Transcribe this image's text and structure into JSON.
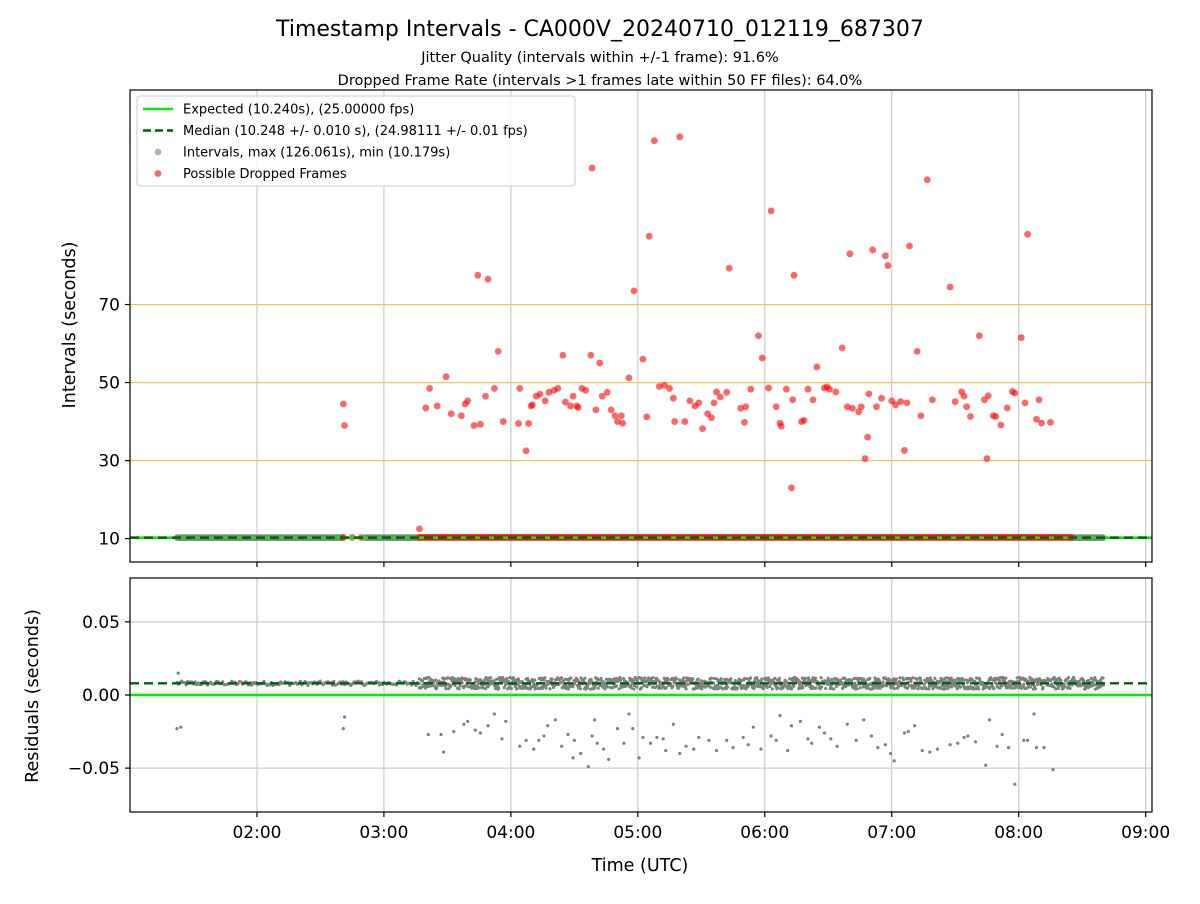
{
  "title": "Timestamp Intervals - CA000V_20240710_012119_687307",
  "subtitle_1": "Jitter Quality (intervals within +/-1 frame): 91.6%",
  "subtitle_2": "Dropped Frame Rate (intervals >1 frames late within 50 FF files): 64.0%",
  "xlabel": "Time (UTC)",
  "colors": {
    "expected": "#00ee00",
    "median": "#006400",
    "intervals": "#808080",
    "dropped": "#ff0000",
    "hline": "#f5c542"
  },
  "chart_data": [
    {
      "type": "scatter",
      "panel": "intervals",
      "ylabel": "Intervals (seconds)",
      "x_unit": "hours UTC",
      "xlim": [
        1.0,
        9.05
      ],
      "ylim": [
        4,
        125
      ],
      "yticks": [
        10,
        30,
        50,
        70
      ],
      "xticks": [
        2,
        3,
        4,
        5,
        6,
        7,
        8,
        9
      ],
      "xtick_labels": [
        "02:00",
        "03:00",
        "04:00",
        "05:00",
        "06:00",
        "07:00",
        "08:00",
        "09:00"
      ],
      "grid": true,
      "legend_position": "top-left",
      "legend": [
        {
          "label": "Expected (10.240s), (25.00000 fps)",
          "style": "solid-line",
          "color": "#00ee00"
        },
        {
          "label": "Median (10.248 +/- 0.010 s), (24.98111 +/- 0.01 fps)",
          "style": "dashed-line",
          "color": "#006400"
        },
        {
          "label": "Intervals, max (126.061s), min (10.179s)",
          "style": "marker",
          "color": "#808080"
        },
        {
          "label": "Possible Dropped Frames",
          "style": "marker",
          "color": "#ff0000"
        }
      ],
      "expected_value": 10.24,
      "median_value": 10.248,
      "horizontal_lines": [
        30,
        50,
        70
      ],
      "normal_intervals": {
        "x_ranges": [
          [
            1.37,
            2.68
          ],
          [
            2.85,
            3.28
          ],
          [
            8.42,
            8.67
          ]
        ],
        "y": 10.24
      },
      "dropped_near_baseline": {
        "x_range": [
          3.28,
          8.42
        ],
        "y": 10.3,
        "extra": [
          [
            2.68,
            10.3
          ],
          [
            2.75,
            10.3
          ],
          [
            2.82,
            10.3
          ],
          [
            3.28,
            12.5
          ]
        ]
      },
      "dropped_frames": [
        [
          2.68,
          44.5
        ],
        [
          2.69,
          39
        ],
        [
          3.33,
          43.5
        ],
        [
          3.36,
          48.5
        ],
        [
          3.42,
          44
        ],
        [
          3.49,
          51.5
        ],
        [
          3.53,
          42
        ],
        [
          3.61,
          41.5
        ],
        [
          3.64,
          44.5
        ],
        [
          3.66,
          45.3
        ],
        [
          3.71,
          39
        ],
        [
          3.74,
          77.5
        ],
        [
          3.76,
          39.3
        ],
        [
          3.8,
          46.5
        ],
        [
          3.82,
          76.5
        ],
        [
          3.87,
          48.5
        ],
        [
          3.9,
          58
        ],
        [
          3.94,
          40
        ],
        [
          4.06,
          39.5
        ],
        [
          4.07,
          48.5
        ],
        [
          4.12,
          32.5
        ],
        [
          4.14,
          39.5
        ],
        [
          4.16,
          44
        ],
        [
          4.17,
          44.3
        ],
        [
          4.2,
          46.5
        ],
        [
          4.23,
          47
        ],
        [
          4.27,
          45.3
        ],
        [
          4.3,
          47.5
        ],
        [
          4.34,
          48
        ],
        [
          4.37,
          48.5
        ],
        [
          4.41,
          57
        ],
        [
          4.43,
          45
        ],
        [
          4.47,
          44
        ],
        [
          4.49,
          46.5
        ],
        [
          4.52,
          44
        ],
        [
          4.53,
          43.6
        ],
        [
          4.56,
          48.5
        ],
        [
          4.59,
          48
        ],
        [
          4.63,
          57
        ],
        [
          4.64,
          105
        ],
        [
          4.67,
          43
        ],
        [
          4.7,
          55
        ],
        [
          4.72,
          46.5
        ],
        [
          4.76,
          47.5
        ],
        [
          4.79,
          43
        ],
        [
          4.82,
          41.5
        ],
        [
          4.84,
          40
        ],
        [
          4.87,
          41.5
        ],
        [
          4.88,
          39.6
        ],
        [
          4.93,
          51.2
        ],
        [
          4.97,
          73.5
        ],
        [
          5.04,
          56
        ],
        [
          5.07,
          41.2
        ],
        [
          5.09,
          87.5
        ],
        [
          5.13,
          112
        ],
        [
          5.17,
          49
        ],
        [
          5.21,
          49.3
        ],
        [
          5.25,
          48.5
        ],
        [
          5.28,
          46
        ],
        [
          5.29,
          40
        ],
        [
          5.33,
          113
        ],
        [
          5.37,
          40
        ],
        [
          5.41,
          45.3
        ],
        [
          5.45,
          44
        ],
        [
          5.48,
          44.8
        ],
        [
          5.51,
          38.2
        ],
        [
          5.55,
          42
        ],
        [
          5.58,
          41
        ],
        [
          5.6,
          44.8
        ],
        [
          5.62,
          47.6
        ],
        [
          5.65,
          46.3
        ],
        [
          5.7,
          47.5
        ],
        [
          5.72,
          79.3
        ],
        [
          5.81,
          43.4
        ],
        [
          5.84,
          39.8
        ],
        [
          5.85,
          43.8
        ],
        [
          5.89,
          48.3
        ],
        [
          5.95,
          62
        ],
        [
          5.98,
          56.3
        ],
        [
          6.03,
          48.6
        ],
        [
          6.05,
          94
        ],
        [
          6.09,
          43.8
        ],
        [
          6.12,
          39.6
        ],
        [
          6.13,
          38.8
        ],
        [
          6.17,
          48.3
        ],
        [
          6.21,
          23
        ],
        [
          6.22,
          45.6
        ],
        [
          6.23,
          77.5
        ],
        [
          6.29,
          40
        ],
        [
          6.31,
          40.3
        ],
        [
          6.34,
          48.3
        ],
        [
          6.38,
          45.6
        ],
        [
          6.41,
          54
        ],
        [
          6.47,
          48.6
        ],
        [
          6.49,
          48.9
        ],
        [
          6.51,
          48.3
        ],
        [
          6.56,
          47.6
        ],
        [
          6.61,
          58.9
        ],
        [
          6.65,
          43.8
        ],
        [
          6.67,
          83
        ],
        [
          6.69,
          43.4
        ],
        [
          6.74,
          42.5
        ],
        [
          6.76,
          43.8
        ],
        [
          6.79,
          30.5
        ],
        [
          6.81,
          36
        ],
        [
          6.82,
          47.1
        ],
        [
          6.85,
          84
        ],
        [
          6.88,
          43.8
        ],
        [
          6.92,
          46
        ],
        [
          6.95,
          82.5
        ],
        [
          6.97,
          80
        ],
        [
          7.0,
          45.3
        ],
        [
          7.03,
          44.3
        ],
        [
          7.07,
          45.1
        ],
        [
          7.1,
          32.6
        ],
        [
          7.12,
          44.8
        ],
        [
          7.14,
          85
        ],
        [
          7.2,
          58
        ],
        [
          7.23,
          41.5
        ],
        [
          7.28,
          102
        ],
        [
          7.32,
          45.6
        ],
        [
          7.46,
          74.5
        ],
        [
          7.5,
          45.1
        ],
        [
          7.55,
          47.6
        ],
        [
          7.57,
          46.5
        ],
        [
          7.59,
          43.8
        ],
        [
          7.62,
          41.3
        ],
        [
          7.69,
          62
        ],
        [
          7.73,
          45.6
        ],
        [
          7.75,
          30.5
        ],
        [
          7.76,
          46.6
        ],
        [
          7.8,
          41.5
        ],
        [
          7.82,
          41.3
        ],
        [
          7.86,
          39.1
        ],
        [
          7.91,
          43.5
        ],
        [
          7.95,
          47.7
        ],
        [
          7.97,
          47.3
        ],
        [
          8.02,
          61.5
        ],
        [
          8.05,
          44.8
        ],
        [
          8.07,
          88
        ],
        [
          8.14,
          40.6
        ],
        [
          8.16,
          45.6
        ],
        [
          8.18,
          39.6
        ],
        [
          8.25,
          39.8
        ]
      ]
    },
    {
      "type": "scatter",
      "panel": "residuals",
      "ylabel": "Residuals (seconds)",
      "x_unit": "hours UTC",
      "xlim": [
        1.0,
        9.05
      ],
      "ylim": [
        -0.08,
        0.08
      ],
      "yticks": [
        -0.05,
        0.0,
        0.05
      ],
      "ytick_labels": [
        "−0.05",
        "0.00",
        "0.05"
      ],
      "xticks": [
        2,
        3,
        4,
        5,
        6,
        7,
        8,
        9
      ],
      "xtick_labels": [
        "02:00",
        "03:00",
        "04:00",
        "05:00",
        "06:00",
        "07:00",
        "08:00",
        "09:00"
      ],
      "grid": true,
      "expected_value": 0.0,
      "median_value": 0.008,
      "residual_bands": [
        {
          "x_range": [
            1.37,
            3.28
          ],
          "center": 0.008,
          "spread": 0.0015
        },
        {
          "x_range": [
            3.28,
            8.67
          ],
          "center": 0.008,
          "spread": 0.004
        }
      ],
      "outlier_points": [
        [
          1.38,
          0.015
        ],
        [
          1.37,
          -0.023
        ],
        [
          1.4,
          -0.022
        ],
        [
          2.69,
          -0.015
        ],
        [
          2.68,
          -0.023
        ],
        [
          3.28,
          0.011
        ],
        [
          3.35,
          -0.027
        ],
        [
          3.45,
          -0.027
        ],
        [
          3.47,
          -0.039
        ],
        [
          3.55,
          -0.025
        ],
        [
          3.63,
          -0.02
        ],
        [
          3.66,
          -0.018
        ],
        [
          3.72,
          -0.024
        ],
        [
          3.76,
          -0.026
        ],
        [
          3.82,
          -0.021
        ],
        [
          3.87,
          -0.013
        ],
        [
          3.93,
          -0.03
        ],
        [
          3.96,
          -0.018
        ],
        [
          4.07,
          -0.035
        ],
        [
          4.12,
          -0.031
        ],
        [
          4.18,
          -0.037
        ],
        [
          4.22,
          -0.031
        ],
        [
          4.26,
          -0.028
        ],
        [
          4.29,
          -0.021
        ],
        [
          4.35,
          -0.017
        ],
        [
          4.4,
          -0.035
        ],
        [
          4.45,
          -0.027
        ],
        [
          4.49,
          -0.043
        ],
        [
          4.5,
          -0.031
        ],
        [
          4.55,
          -0.04
        ],
        [
          4.61,
          -0.049
        ],
        [
          4.64,
          -0.028
        ],
        [
          4.66,
          -0.017
        ],
        [
          4.68,
          -0.033
        ],
        [
          4.73,
          -0.037
        ],
        [
          4.77,
          -0.044
        ],
        [
          4.84,
          -0.023
        ],
        [
          4.89,
          -0.033
        ],
        [
          4.93,
          -0.013
        ],
        [
          4.96,
          -0.023
        ],
        [
          5.01,
          -0.043
        ],
        [
          5.04,
          -0.029
        ],
        [
          5.1,
          -0.033
        ],
        [
          5.15,
          -0.029
        ],
        [
          5.2,
          -0.03
        ],
        [
          5.22,
          -0.038
        ],
        [
          5.28,
          -0.02
        ],
        [
          5.33,
          -0.04
        ],
        [
          5.38,
          -0.035
        ],
        [
          5.44,
          -0.037
        ],
        [
          5.48,
          -0.029
        ],
        [
          5.56,
          -0.031
        ],
        [
          5.62,
          -0.038
        ],
        [
          5.7,
          -0.031
        ],
        [
          5.75,
          -0.036
        ],
        [
          5.83,
          -0.029
        ],
        [
          5.87,
          -0.034
        ],
        [
          5.91,
          -0.022
        ],
        [
          5.97,
          -0.037
        ],
        [
          6.05,
          -0.028
        ],
        [
          6.09,
          -0.031
        ],
        [
          6.12,
          -0.014
        ],
        [
          6.18,
          -0.038
        ],
        [
          6.21,
          -0.021
        ],
        [
          6.28,
          -0.018
        ],
        [
          6.34,
          -0.03
        ],
        [
          6.37,
          -0.033
        ],
        [
          6.43,
          -0.022
        ],
        [
          6.47,
          -0.026
        ],
        [
          6.52,
          -0.03
        ],
        [
          6.57,
          -0.035
        ],
        [
          6.65,
          -0.02
        ],
        [
          6.72,
          -0.031
        ],
        [
          6.78,
          -0.017
        ],
        [
          6.84,
          -0.028
        ],
        [
          6.89,
          -0.036
        ],
        [
          6.95,
          -0.034
        ],
        [
          6.99,
          -0.04
        ],
        [
          7.02,
          -0.045
        ],
        [
          7.1,
          -0.026
        ],
        [
          7.13,
          -0.025
        ],
        [
          7.18,
          -0.021
        ],
        [
          7.24,
          -0.038
        ],
        [
          7.3,
          -0.039
        ],
        [
          7.36,
          -0.037
        ],
        [
          7.46,
          -0.034
        ],
        [
          7.52,
          -0.033
        ],
        [
          7.57,
          -0.029
        ],
        [
          7.6,
          -0.028
        ],
        [
          7.66,
          -0.032
        ],
        [
          7.74,
          -0.048
        ],
        [
          7.77,
          -0.017
        ],
        [
          7.83,
          -0.035
        ],
        [
          7.87,
          -0.027
        ],
        [
          7.92,
          -0.036
        ],
        [
          7.97,
          -0.061
        ],
        [
          8.04,
          -0.031
        ],
        [
          8.07,
          -0.031
        ],
        [
          8.14,
          -0.036
        ],
        [
          8.2,
          -0.036
        ],
        [
          8.27,
          -0.051
        ],
        [
          8.12,
          -0.013
        ]
      ]
    }
  ]
}
